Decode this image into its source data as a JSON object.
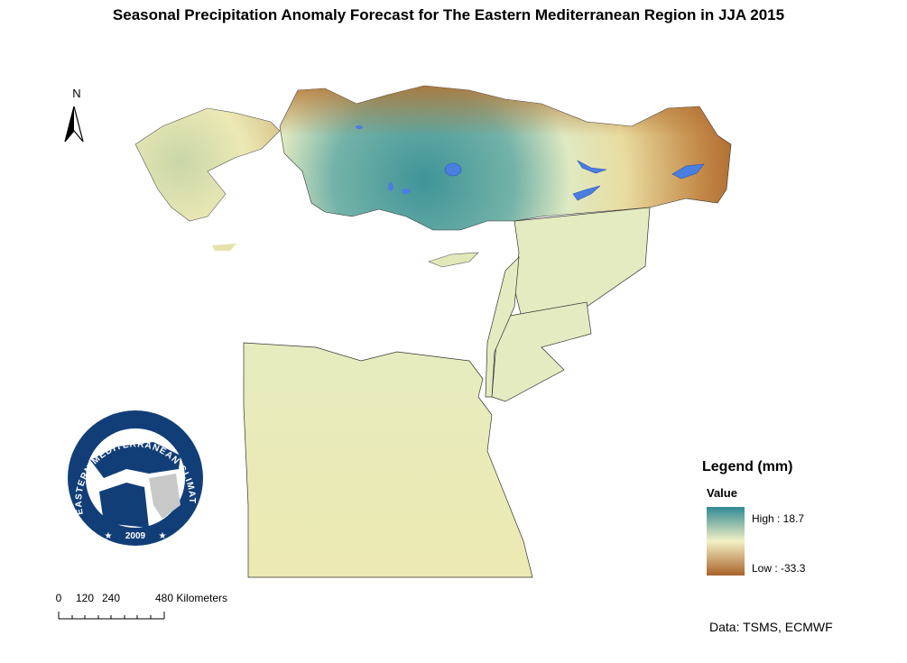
{
  "title": "Seasonal Precipitation Anomaly Forecast for The Eastern Mediterranean Region in JJA 2015",
  "north_label": "N",
  "logo": {
    "ring_text": "EASTERN MEDITERRANEAN CLIMATE CENTRE",
    "year": "2009"
  },
  "legend": {
    "title": "Legend (mm)",
    "field": "Value",
    "high": "High : 18.7",
    "low": "Low : -33.3"
  },
  "scale_bar": {
    "labels": [
      "0",
      "120",
      "240",
      "480 Kilometers"
    ]
  },
  "credit": "Data: TSMS, ECMWF"
}
